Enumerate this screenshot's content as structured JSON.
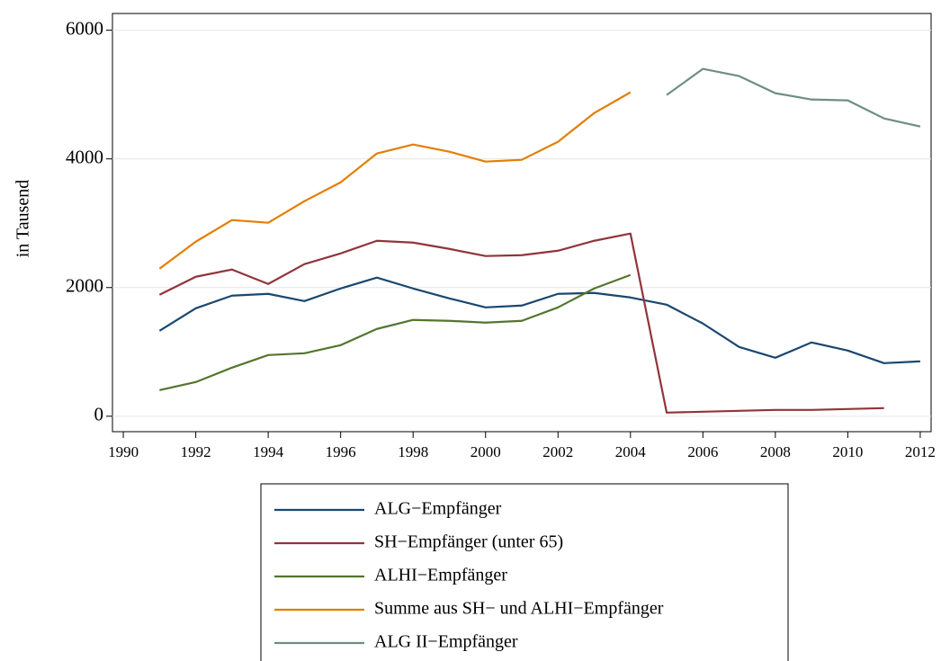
{
  "chart_data": {
    "type": "line",
    "y_label": "in Tausend",
    "x": [
      1991,
      1992,
      1993,
      1994,
      1995,
      1996,
      1997,
      1998,
      1999,
      2000,
      2001,
      2002,
      2003,
      2004,
      2005,
      2006,
      2007,
      2008,
      2009,
      2010,
      2011,
      2012
    ],
    "series": [
      {
        "name": "ALG−Empfänger",
        "color": "#1a476f",
        "values": [
          1329,
          1678,
          1874,
          1902,
          1790,
          1986,
          2154,
          1986,
          1832,
          1692,
          1720,
          1902,
          1916,
          1846,
          1734,
          1441,
          1077,
          909,
          1147,
          1021,
          825,
          853
        ]
      },
      {
        "name": "SH−Empfänger (unter 65)",
        "color": "#90353b",
        "values": [
          1888,
          2168,
          2280,
          2056,
          2364,
          2531,
          2727,
          2699,
          2601,
          2490,
          2503,
          2573,
          2727,
          2839,
          56,
          70,
          84,
          98,
          98,
          112,
          126,
          null
        ]
      },
      {
        "name": "ALHI−Empfänger",
        "color": "#55752f",
        "values": [
          406,
          531,
          755,
          951,
          979,
          1105,
          1357,
          1497,
          1483,
          1455,
          1483,
          1692,
          1986,
          2196,
          null,
          null,
          null,
          null,
          null,
          null,
          null,
          null
        ]
      },
      {
        "name": "Summe aus SH− und ALHI−Empfänger",
        "color": "#e37e00",
        "values": [
          2294,
          2713,
          3049,
          3007,
          3343,
          3636,
          4084,
          4224,
          4112,
          3958,
          3986,
          4266,
          4713,
          5035,
          null,
          null,
          null,
          null,
          null,
          null,
          null,
          null
        ]
      },
      {
        "name": "ALG II−Empfänger",
        "color": "#6e8e84",
        "values": [
          null,
          null,
          null,
          null,
          null,
          null,
          null,
          null,
          null,
          null,
          null,
          null,
          null,
          null,
          4993,
          5399,
          5287,
          5021,
          4923,
          4909,
          4629,
          4503
        ]
      }
    ],
    "xlim": [
      1989.7,
      2012.3
    ],
    "xticks": [
      1990,
      1992,
      1994,
      1996,
      1998,
      2000,
      2002,
      2004,
      2006,
      2008,
      2010,
      2012
    ],
    "ylim": [
      -240,
      6260
    ],
    "yticks": [
      0,
      2000,
      4000,
      6000
    ],
    "grid": true,
    "legend": "bottom"
  }
}
